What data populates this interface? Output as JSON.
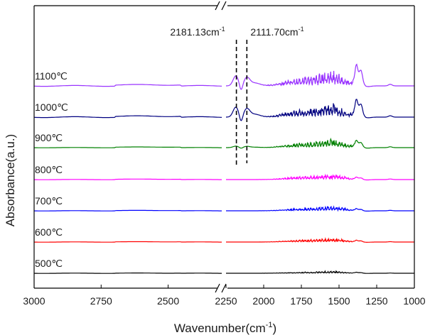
{
  "chart_data": {
    "type": "line",
    "title": "",
    "xlabel": "Wavenumber(cm",
    "xlabel_sup": "-1",
    "xlabel_tail": ")",
    "ylabel": "Absorbance(a.u.)",
    "x_reversed": true,
    "x_broken_axis": true,
    "x_segments": [
      [
        3000,
        2300
      ],
      [
        2250,
        1000
      ]
    ],
    "x_tick_labels": [
      "3000",
      "2750",
      "2500",
      "2250",
      "2000",
      "1750",
      "1500",
      "1250",
      "1000"
    ],
    "x_tick_values": [
      3000,
      2750,
      2500,
      2250,
      2000,
      1750,
      1500,
      1250,
      1000
    ],
    "y_ticks_shown": false,
    "grid": false,
    "legend": "inline labels at left, one per curve",
    "annotations": [
      {
        "text": "2181.13cm",
        "sup": "-1",
        "x": 2181.13
      },
      {
        "text": "2111.70cm",
        "sup": "-1",
        "x": 2111.7
      }
    ],
    "series": [
      {
        "name": "500℃",
        "color": "#000000",
        "intensity": 0.25,
        "has_co": false
      },
      {
        "name": "600℃",
        "color": "#ff0000",
        "intensity": 0.45,
        "has_co": false
      },
      {
        "name": "700℃",
        "color": "#0000ff",
        "intensity": 0.55,
        "has_co": false
      },
      {
        "name": "800℃",
        "color": "#ff00ff",
        "intensity": 0.65,
        "has_co": false
      },
      {
        "name": "900℃",
        "color": "#008000",
        "intensity": 1.0,
        "has_co": true,
        "co_strength": 0.15
      },
      {
        "name": "1000℃",
        "color": "#000080",
        "intensity": 1.6,
        "has_co": true,
        "co_strength": 1.0
      },
      {
        "name": "1100℃",
        "color": "#9933ff",
        "intensity": 1.8,
        "has_co": true,
        "co_strength": 1.0
      }
    ]
  }
}
